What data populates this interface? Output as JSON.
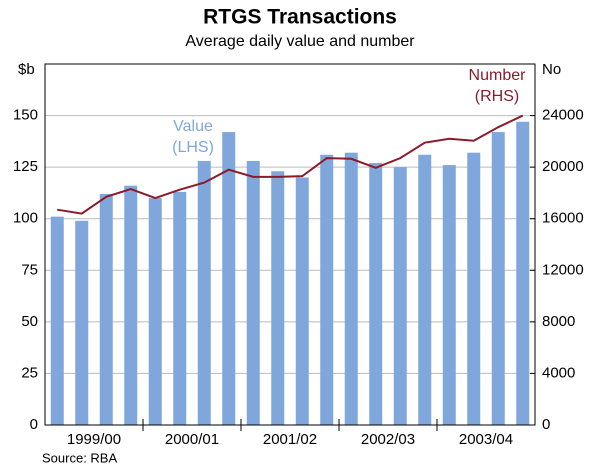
{
  "chart_data": {
    "type": "bar-line",
    "title": "RTGS Transactions",
    "subtitle": "Average daily value and number",
    "ylabel": "$b",
    "y2label": "No",
    "source": "Source: RBA",
    "x_groups": [
      "1999/00",
      "2000/01",
      "2001/02",
      "2002/03",
      "2003/04"
    ],
    "categories": [
      null,
      null,
      null,
      null,
      null,
      null,
      null,
      null,
      null,
      null,
      null,
      null,
      null,
      null,
      null,
      null,
      null,
      null,
      null,
      null
    ],
    "series": [
      {
        "name": "Value",
        "note": "(LHS)",
        "type": "bar",
        "color": "#7fa7dc",
        "values": [
          101,
          99,
          112,
          116,
          110,
          113,
          128,
          142,
          128,
          123,
          120,
          131,
          132,
          127,
          125,
          131,
          126,
          132,
          142,
          147
        ]
      },
      {
        "name": "Number",
        "note": "(RHS)",
        "type": "line",
        "axis": "y2",
        "color": "#8b1a2a",
        "values": [
          16700,
          16400,
          17700,
          18300,
          17600,
          18250,
          18800,
          19800,
          19250,
          19250,
          19300,
          20700,
          20650,
          19950,
          20700,
          21900,
          22200,
          22050,
          23100,
          24000
        ]
      }
    ],
    "ylim": [
      0,
      175
    ],
    "yticks": [
      0,
      25,
      50,
      75,
      100,
      125,
      150
    ],
    "y2lim": [
      0,
      28000
    ],
    "y2ticks": [
      0,
      4000,
      8000,
      12000,
      16000,
      20000,
      24000
    ],
    "grid": true
  }
}
